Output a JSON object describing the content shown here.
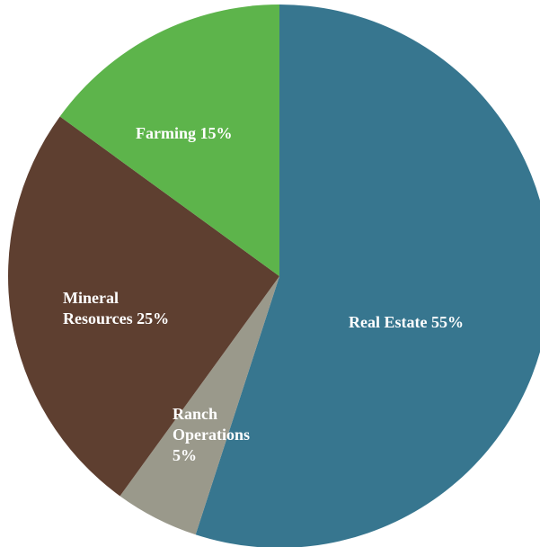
{
  "chart_data": {
    "type": "pie",
    "categories": [
      "Real Estate",
      "Ranch Operations",
      "Mineral Resources",
      "Farming"
    ],
    "values": [
      55,
      5,
      25,
      15
    ],
    "value_labels": [
      "55%",
      "5%",
      "25%",
      "15%"
    ],
    "colors": [
      "#37768f",
      "#9a998b",
      "#5e3f30",
      "#5db44b"
    ]
  }
}
